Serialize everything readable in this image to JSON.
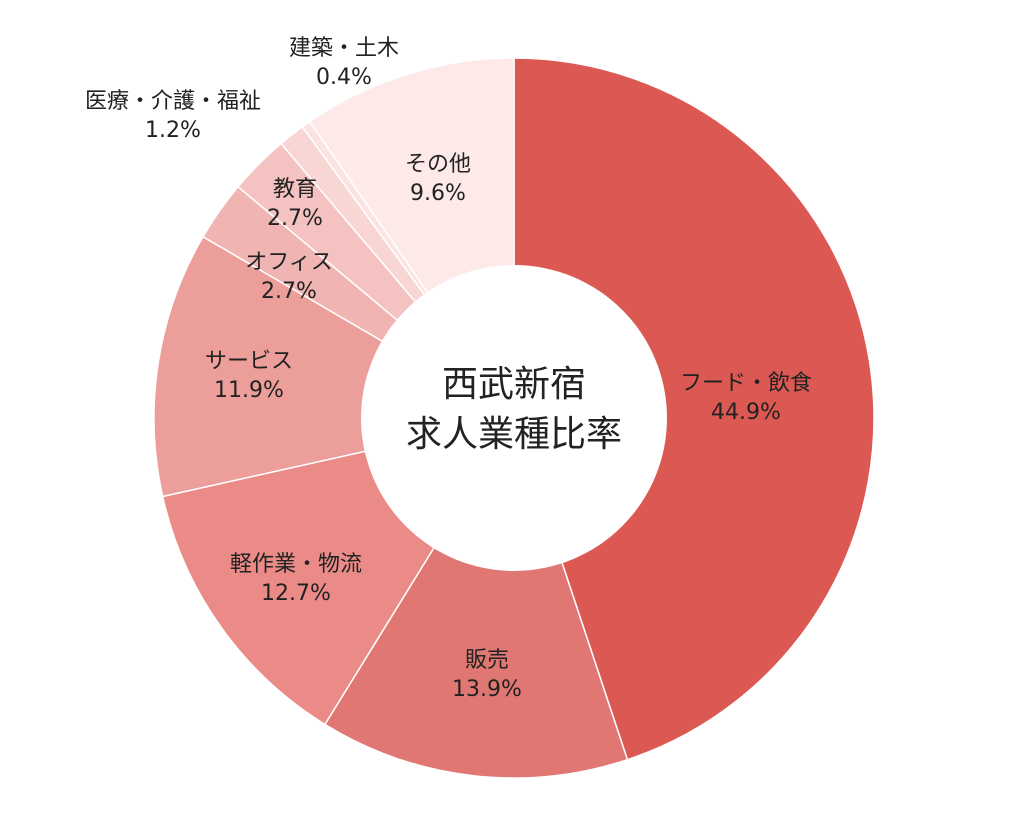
{
  "chart_data": {
    "type": "pie",
    "style": "donut",
    "title_lines": [
      "西武新宿",
      "求人業種比率"
    ],
    "slices": [
      {
        "name": "フード・飲食",
        "value": 44.9,
        "label": "44.9%",
        "color": "#dc5853"
      },
      {
        "name": "販売",
        "value": 13.9,
        "label": "13.9%",
        "color": "#e07772"
      },
      {
        "name": "軽作業・物流",
        "value": 12.7,
        "label": "12.7%",
        "color": "#ea8b87"
      },
      {
        "name": "サービス",
        "value": 11.9,
        "label": "11.9%",
        "color": "#ec9e9b"
      },
      {
        "name": "オフィス",
        "value": 2.7,
        "label": "2.7%",
        "color": "#f0b5b2"
      },
      {
        "name": "教育",
        "value": 2.7,
        "label": "2.7%",
        "color": "#f4c3c1"
      },
      {
        "name": "医療・介護・福祉",
        "value": 1.2,
        "label": "1.2%",
        "color": "#f8d6d4"
      },
      {
        "name": "建築・土木",
        "value": 0.4,
        "label": "0.4%",
        "color": "#fbe3e2"
      },
      {
        "name": "その他",
        "value": 9.6,
        "label": "9.6%",
        "color": "#fde9e8"
      }
    ]
  }
}
